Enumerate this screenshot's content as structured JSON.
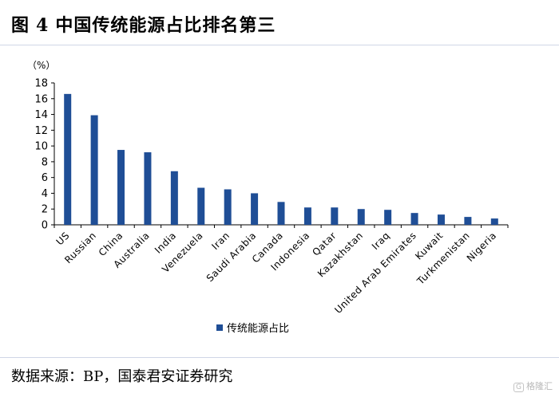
{
  "title": {
    "prefix": "图",
    "number": "4",
    "text": "中国传统能源占比排名第三"
  },
  "source": "数据来源：BP，国泰君安证券研究",
  "watermark": {
    "mark": "G",
    "text": "格隆汇"
  },
  "chart_data": {
    "type": "bar",
    "title": "中国传统能源占比排名第三",
    "unit_label": "（%）",
    "categories": [
      "US",
      "Russian",
      "China",
      "Australia",
      "India",
      "Venezuela",
      "Iran",
      "Saudi Arabia",
      "Canada",
      "Indonesia",
      "Qatar",
      "Kazakhstan",
      "Iraq",
      "United Arab Emirates",
      "Kuwait",
      "Turkmenistan",
      "Nigeria"
    ],
    "series": [
      {
        "name": "传统能源占比",
        "values": [
          16.6,
          13.9,
          9.5,
          9.2,
          6.8,
          4.7,
          4.5,
          4.0,
          2.9,
          2.2,
          2.2,
          2.0,
          1.9,
          1.5,
          1.3,
          1.0,
          0.8
        ],
        "color": "#1f4e96"
      }
    ],
    "ylim": [
      0,
      18
    ],
    "yticks": [
      0,
      2,
      4,
      6,
      8,
      10,
      12,
      14,
      16,
      18
    ],
    "grid": false,
    "legend_position": "bottom"
  }
}
